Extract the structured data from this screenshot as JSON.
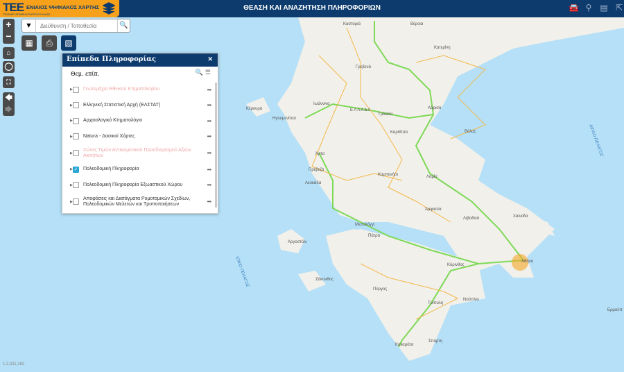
{
  "header": {
    "logo_mark": "ΤΕΕ",
    "logo_name": "ΕΝΙΑΙΟΣ ΨΗΦΙΑΚΟΣ ΧΑΡΤΗΣ",
    "logo_sub": "ΤΕΧΝΙΚΟ ΕΠΙΜΕΛΗΤΗΡΙΟ ΕΛΛΑΔΑΣ",
    "title": "ΘΕΑΣΗ ΚΑΙ ΑΝΑΖΗΤΗΣΗ ΠΛΗΡΟΦΟΡΙΩΝ",
    "icons": [
      "car-icon",
      "map-pin-icon",
      "document-search-icon",
      "export-icon"
    ]
  },
  "search": {
    "placeholder": "Διεύθυνση / Τοποθεσία"
  },
  "panel": {
    "title": "Επίπεδα Πληροφορίας",
    "subtitle": "Θεμ. επίπ.",
    "layers": [
      {
        "label": "Γεωτεμάχια Εθνικού Κτηματολογίου",
        "checked": false,
        "disabled": true
      },
      {
        "label": "Ελληνική Στατιστική Αρχή (ΕΛΣΤΑΤ)",
        "checked": false,
        "disabled": false
      },
      {
        "label": "Αρχαιολογικό Κτηματολόγιο",
        "checked": false,
        "disabled": false
      },
      {
        "label": "Natura - Δασικοί Χάρτες",
        "checked": false,
        "disabled": false
      },
      {
        "label": "Ζώνες Τιμών Αντικειμενικού Προσδιορισμού Αξιών Ακινήτων",
        "checked": false,
        "disabled": true
      },
      {
        "label": "Πολεοδομική Πληροφορία",
        "checked": true,
        "disabled": false
      },
      {
        "label": "Πολεοδομική Πληροφορία Εξωαστικού Χώρου",
        "checked": false,
        "disabled": false
      },
      {
        "label": "Αποφάσεις και Διατάγματα Ρυμοτομικών Σχεδίων, Πολεοδομικών Μελετών και Τροποποιήσεων",
        "checked": false,
        "disabled": false
      }
    ]
  },
  "map": {
    "scale": "1:2,311,162",
    "cities": [
      "Καστοριά",
      "Βέροια",
      "Κατερίνη",
      "Γρεβενά",
      "Κέρκυρα",
      "Ηγουμενίτσα",
      "Ιωάννινα",
      "Ε Λ Λ Α Δ Α",
      "Τρίκαλα",
      "Λάρισα",
      "Καρδίτσα",
      "Βόλος",
      "Άρτα",
      "Πρέβεζα",
      "Καρπενήσι",
      "Λευκάδα",
      "Λαμία",
      "Άμφισσα",
      "Λιβαδειά",
      "Χαλκίδα",
      "Μεσολόγγι",
      "Πάτρα",
      "Αργοστόλι",
      "Κόρινθος",
      "Αθήνα",
      "Ζάκυνθος",
      "Πύργος",
      "Τρίπολη",
      "Ναύπλιο",
      "Καλαμάτα",
      "Σπάρτη",
      "Ερμούπ"
    ],
    "seas": [
      "ΑΙΓΑΙΟ ΠΕΛΑΓΟΣ",
      "ΙΟΝΙΟ ΠΕΛΑΓΟΣ"
    ]
  },
  "colors": {
    "header": "#0d3b6e",
    "logo": "#f7a11a",
    "sea": "#b5e0f7",
    "land": "#f2f1ec",
    "checked": "#2aa6d5"
  }
}
